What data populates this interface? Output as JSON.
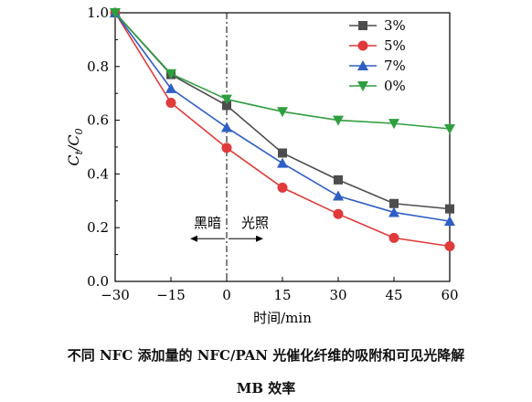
{
  "chart_data": {
    "type": "line",
    "x": [
      -30,
      -15,
      0,
      15,
      30,
      45,
      60
    ],
    "xticks": [
      "-30",
      "-15",
      "0",
      "15",
      "30",
      "45",
      "60"
    ],
    "yticks": [
      "0.0",
      "0.2",
      "0.4",
      "0.6",
      "0.8",
      "1.0"
    ],
    "xlabel": "时间/min",
    "ylabel": {
      "main": "C",
      "sub": "t",
      "sep": "/",
      "main2": "C",
      "sub2": "0"
    },
    "xlim": [
      -30,
      60
    ],
    "ylim": [
      0,
      1.0
    ],
    "grid": false,
    "legend_position": "top-right",
    "annotations": {
      "dark": "黑暗",
      "light": "光照",
      "divider_x": 0
    },
    "series": [
      {
        "name": "3%",
        "marker": "square",
        "color": "#4d4d4d",
        "values": [
          1.0,
          0.77,
          0.655,
          0.478,
          0.378,
          0.29,
          0.27
        ]
      },
      {
        "name": "5%",
        "marker": "circle",
        "color": "#e03a3a",
        "values": [
          1.0,
          0.665,
          0.497,
          0.349,
          0.251,
          0.162,
          0.131
        ]
      },
      {
        "name": "7%",
        "marker": "triangle-up",
        "color": "#2f5fc4",
        "values": [
          1.0,
          0.718,
          0.573,
          0.44,
          0.318,
          0.257,
          0.224
        ]
      },
      {
        "name": "0%",
        "marker": "triangle-down",
        "color": "#2f9e3f",
        "values": [
          1.0,
          0.773,
          0.678,
          0.632,
          0.6,
          0.588,
          0.568
        ]
      }
    ]
  },
  "caption": {
    "line1": "不同 NFC 添加量的 NFC/PAN 光催化纤维的吸附和可见光降解",
    "line2": "MB 效率"
  }
}
